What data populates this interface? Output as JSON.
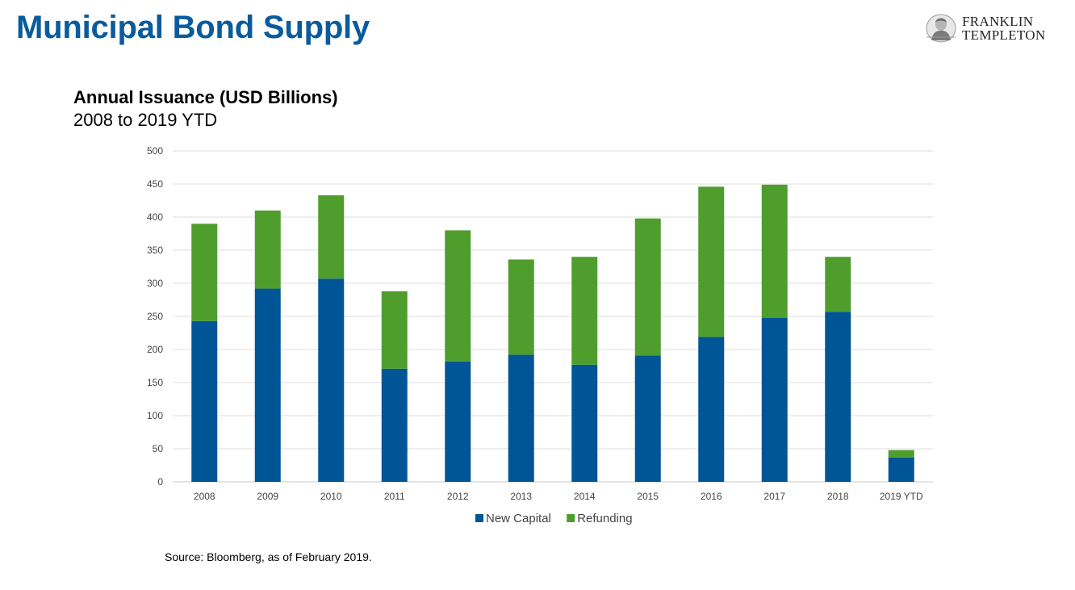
{
  "page": {
    "title": "Municipal Bond Supply",
    "source": "Source: Bloomberg, as of February 2019."
  },
  "logo": {
    "line1": "FRANKLIN",
    "line2": "TEMPLETON"
  },
  "chart_data": {
    "type": "bar",
    "stacked": true,
    "title": "Annual Issuance (USD Billions)",
    "subtitle": "2008 to 2019 YTD",
    "xlabel": "",
    "ylabel": "",
    "ylim": [
      0,
      500
    ],
    "yticks": [
      0,
      50,
      100,
      150,
      200,
      250,
      300,
      350,
      400,
      450,
      500
    ],
    "grid": true,
    "legend_position": "bottom",
    "categories": [
      "2008",
      "2009",
      "2010",
      "2011",
      "2012",
      "2013",
      "2014",
      "2015",
      "2016",
      "2017",
      "2018",
      "2019 YTD"
    ],
    "series": [
      {
        "name": "New Capital",
        "color": "#005596",
        "values": [
          243,
          292,
          307,
          171,
          182,
          192,
          177,
          191,
          219,
          248,
          257,
          37
        ]
      },
      {
        "name": "Refunding",
        "color": "#4f9e2d",
        "values": [
          147,
          118,
          126,
          117,
          198,
          144,
          163,
          207,
          227,
          201,
          83,
          11
        ]
      }
    ]
  }
}
